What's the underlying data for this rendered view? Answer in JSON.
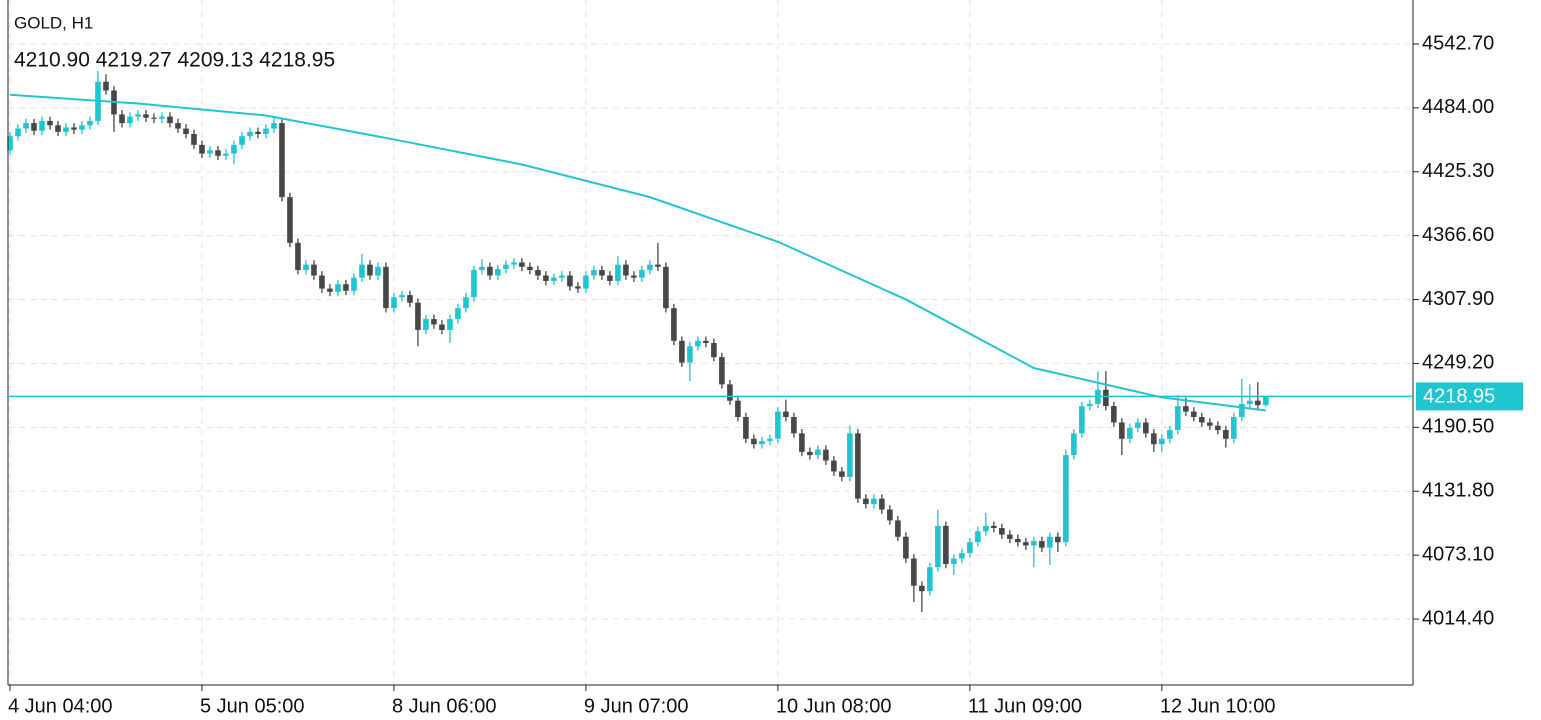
{
  "chart_data": {
    "type": "candlestick",
    "title": "GOLD, H1",
    "ohlc_text": "4210.90 4219.27 4209.13 4218.95",
    "up_color": "#1ec6cf",
    "down_color": "#474747",
    "grid": true,
    "opens": [
      4445,
      4458,
      4465,
      4470,
      4463,
      4472,
      4468,
      4462,
      4466,
      4464,
      4468,
      4472,
      4508,
      4500,
      4478,
      4470,
      4476,
      4478,
      4475,
      4474,
      4476,
      4470,
      4465,
      4460,
      4450,
      4442,
      4445,
      4440,
      4442,
      4450,
      4458,
      4462,
      4460,
      4465,
      4470,
      4402,
      4360,
      4335,
      4340,
      4330,
      4318,
      4315,
      4322,
      4316,
      4328,
      4340,
      4330,
      4338,
      4300,
      4310,
      4312,
      4305,
      4280,
      4290,
      4285,
      4280,
      4290,
      4300,
      4310,
      4335,
      4338,
      4330,
      4336,
      4340,
      4342,
      4338,
      4335,
      4330,
      4325,
      4328,
      4330,
      4320,
      4318,
      4330,
      4335,
      4330,
      4325,
      4340,
      4330,
      4328,
      4335,
      4340,
      4338,
      4300,
      4270,
      4250,
      4265,
      4270,
      4268,
      4255,
      4230,
      4215,
      4200,
      4180,
      4175,
      4178,
      4180,
      4205,
      4200,
      4185,
      4168,
      4165,
      4170,
      4160,
      4150,
      4145,
      4185,
      4125,
      4120,
      4125,
      4115,
      4105,
      4090,
      4070,
      4045,
      4040,
      4062,
      4100,
      4065,
      4070,
      4075,
      4085,
      4095,
      4100,
      4098,
      4092,
      4088,
      4085,
      4082,
      4086,
      4080,
      4090,
      4085,
      4165,
      4185,
      4210,
      4212,
      4225,
      4210,
      4195,
      4180,
      4190,
      4195,
      4185,
      4175,
      4180,
      4188,
      4210,
      4205,
      4200,
      4195,
      4192,
      4188,
      4180,
      4200,
      4212,
      4215,
      4210.9
    ],
    "highs": [
      4462,
      4469,
      4474,
      4474,
      4476,
      4476,
      4472,
      4470,
      4470,
      4472,
      4476,
      4518,
      4515,
      4504,
      4482,
      4480,
      4482,
      4482,
      4479,
      4480,
      4480,
      4474,
      4469,
      4464,
      4454,
      4449,
      4449,
      4446,
      4454,
      4462,
      4466,
      4466,
      4469,
      4476,
      4474,
      4406,
      4364,
      4344,
      4344,
      4334,
      4322,
      4326,
      4326,
      4332,
      4350,
      4344,
      4342,
      4342,
      4314,
      4316,
      4316,
      4309,
      4294,
      4294,
      4289,
      4294,
      4304,
      4314,
      4339,
      4345,
      4342,
      4340,
      4344,
      4346,
      4346,
      4342,
      4339,
      4334,
      4332,
      4334,
      4334,
      4324,
      4334,
      4339,
      4339,
      4334,
      4348,
      4344,
      4334,
      4339,
      4344,
      4360,
      4342,
      4304,
      4274,
      4269,
      4274,
      4274,
      4272,
      4259,
      4234,
      4219,
      4204,
      4184,
      4182,
      4184,
      4209,
      4216,
      4204,
      4189,
      4172,
      4174,
      4174,
      4164,
      4154,
      4192,
      4189,
      4129,
      4129,
      4129,
      4119,
      4109,
      4094,
      4074,
      4049,
      4066,
      4115,
      4104,
      4074,
      4079,
      4089,
      4099,
      4112,
      4104,
      4102,
      4096,
      4092,
      4089,
      4090,
      4090,
      4094,
      4094,
      4170,
      4189,
      4214,
      4216,
      4242,
      4242,
      4214,
      4199,
      4194,
      4199,
      4199,
      4189,
      4184,
      4192,
      4220,
      4218,
      4209,
      4204,
      4199,
      4196,
      4192,
      4204,
      4235,
      4230,
      4232,
      4219.27
    ],
    "lows": [
      4441,
      4454,
      4461,
      4459,
      4459,
      4464,
      4458,
      4458,
      4460,
      4460,
      4464,
      4468,
      4496,
      4462,
      4466,
      4466,
      4472,
      4471,
      4470,
      4470,
      4466,
      4461,
      4456,
      4446,
      4438,
      4438,
      4436,
      4436,
      4432,
      4446,
      4454,
      4456,
      4456,
      4461,
      4398,
      4356,
      4331,
      4331,
      4326,
      4314,
      4311,
      4311,
      4312,
      4312,
      4324,
      4326,
      4326,
      4296,
      4296,
      4306,
      4301,
      4265,
      4276,
      4281,
      4276,
      4268,
      4286,
      4296,
      4306,
      4331,
      4326,
      4326,
      4332,
      4336,
      4334,
      4331,
      4326,
      4321,
      4321,
      4324,
      4316,
      4314,
      4314,
      4326,
      4326,
      4321,
      4321,
      4326,
      4324,
      4324,
      4331,
      4334,
      4296,
      4266,
      4246,
      4233,
      4261,
      4264,
      4251,
      4226,
      4211,
      4196,
      4176,
      4171,
      4171,
      4174,
      4176,
      4196,
      4181,
      4164,
      4161,
      4161,
      4156,
      4146,
      4141,
      4141,
      4121,
      4116,
      4116,
      4111,
      4101,
      4086,
      4066,
      4030,
      4021,
      4036,
      4058,
      4061,
      4055,
      4066,
      4071,
      4081,
      4091,
      4094,
      4088,
      4084,
      4081,
      4078,
      4062,
      4076,
      4064,
      4076,
      4081,
      4161,
      4181,
      4206,
      4208,
      4206,
      4191,
      4165,
      4176,
      4186,
      4181,
      4168,
      4168,
      4176,
      4184,
      4201,
      4196,
      4191,
      4188,
      4184,
      4172,
      4176,
      4196,
      4208,
      4206,
      4209.13
    ],
    "closes": [
      4458,
      4465,
      4470,
      4463,
      4472,
      4468,
      4462,
      4466,
      4464,
      4468,
      4472,
      4508,
      4500,
      4478,
      4470,
      4476,
      4478,
      4475,
      4474,
      4476,
      4470,
      4465,
      4460,
      4450,
      4442,
      4445,
      4440,
      4442,
      4450,
      4458,
      4462,
      4460,
      4465,
      4470,
      4402,
      4360,
      4335,
      4340,
      4330,
      4318,
      4315,
      4322,
      4316,
      4328,
      4340,
      4330,
      4338,
      4300,
      4310,
      4312,
      4305,
      4280,
      4290,
      4285,
      4280,
      4290,
      4300,
      4310,
      4335,
      4338,
      4330,
      4336,
      4340,
      4342,
      4338,
      4335,
      4330,
      4325,
      4328,
      4330,
      4320,
      4318,
      4330,
      4335,
      4330,
      4325,
      4340,
      4330,
      4328,
      4335,
      4340,
      4338,
      4300,
      4270,
      4250,
      4265,
      4270,
      4268,
      4255,
      4230,
      4215,
      4200,
      4180,
      4175,
      4178,
      4180,
      4205,
      4200,
      4185,
      4168,
      4165,
      4170,
      4160,
      4150,
      4145,
      4185,
      4125,
      4120,
      4125,
      4115,
      4105,
      4090,
      4070,
      4045,
      4040,
      4062,
      4100,
      4065,
      4070,
      4075,
      4085,
      4095,
      4100,
      4098,
      4092,
      4088,
      4085,
      4082,
      4086,
      4080,
      4090,
      4085,
      4165,
      4185,
      4210,
      4212,
      4225,
      4210,
      4195,
      4180,
      4190,
      4195,
      4185,
      4175,
      4180,
      4188,
      4210,
      4205,
      4200,
      4195,
      4192,
      4188,
      4180,
      4200,
      4212,
      4215,
      4210.9,
      4218.95
    ],
    "ma": {
      "color": "#22c5cf",
      "x": [
        0,
        16,
        32,
        48,
        64,
        80,
        96,
        112,
        128,
        144,
        157
      ],
      "values": [
        4496,
        4488,
        4477,
        4455,
        4432,
        4402,
        4361,
        4308,
        4245,
        4218,
        4206
      ]
    },
    "xlim": [
      -0.25,
      175.4
    ],
    "xticks": [
      {
        "value": 0,
        "label": "4 Jun 04:00"
      },
      {
        "value": 24,
        "label": "5 Jun 05:00"
      },
      {
        "value": 48,
        "label": "8 Jun 06:00"
      },
      {
        "value": 72,
        "label": "9 Jun 07:00"
      },
      {
        "value": 96,
        "label": "10 Jun 08:00"
      },
      {
        "value": 120,
        "label": "11 Jun 09:00"
      },
      {
        "value": 144,
        "label": "12 Jun 10:00"
      }
    ],
    "ylim": [
      3953.8,
      4583.1
    ],
    "yticks": [
      {
        "value": 4542.7,
        "label": "4542.70"
      },
      {
        "value": 4484,
        "label": "4484.00"
      },
      {
        "value": 4425.3,
        "label": "4425.30"
      },
      {
        "value": 4366.6,
        "label": "4366.60"
      },
      {
        "value": 4307.9,
        "label": "4307.90"
      },
      {
        "value": 4249.2,
        "label": "4249.20"
      },
      {
        "value": 4190.5,
        "label": "4190.50"
      },
      {
        "value": 4131.8,
        "label": "4131.80"
      },
      {
        "value": 4073.1,
        "label": "4073.10"
      },
      {
        "value": 4014.4,
        "label": "4014.40"
      }
    ]
  }
}
